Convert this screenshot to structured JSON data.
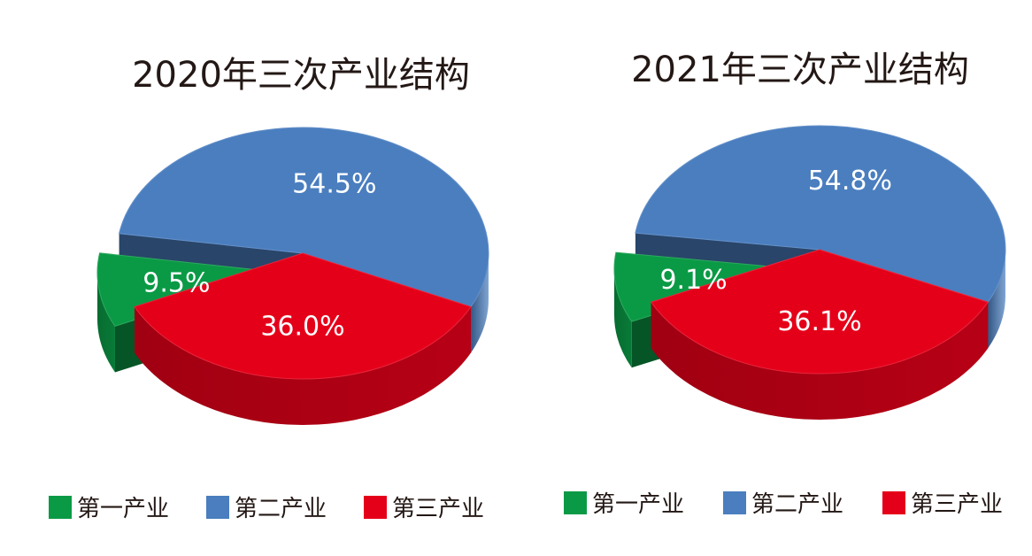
{
  "chart_data": [
    {
      "type": "pie",
      "title": "2020年三次产业结构",
      "categories": [
        "第一产业",
        "第二产业",
        "第三产业"
      ],
      "values": [
        9.5,
        54.5,
        36.0
      ],
      "value_labels": [
        "9.5%",
        "54.5%",
        "36.0%"
      ],
      "colors": [
        "#0a9a45",
        "#4a7ebf",
        "#e5001a"
      ],
      "legend_position": "bottom",
      "style": "3d-exploded"
    },
    {
      "type": "pie",
      "title": "2021年三次产业结构",
      "categories": [
        "第一产业",
        "第二产业",
        "第三产业"
      ],
      "values": [
        9.1,
        54.8,
        36.1
      ],
      "value_labels": [
        "9.1%",
        "54.8%",
        "36.1%"
      ],
      "colors": [
        "#0a9a45",
        "#4a7ebf",
        "#e5001a"
      ],
      "legend_position": "bottom",
      "style": "3d-exploded"
    }
  ]
}
